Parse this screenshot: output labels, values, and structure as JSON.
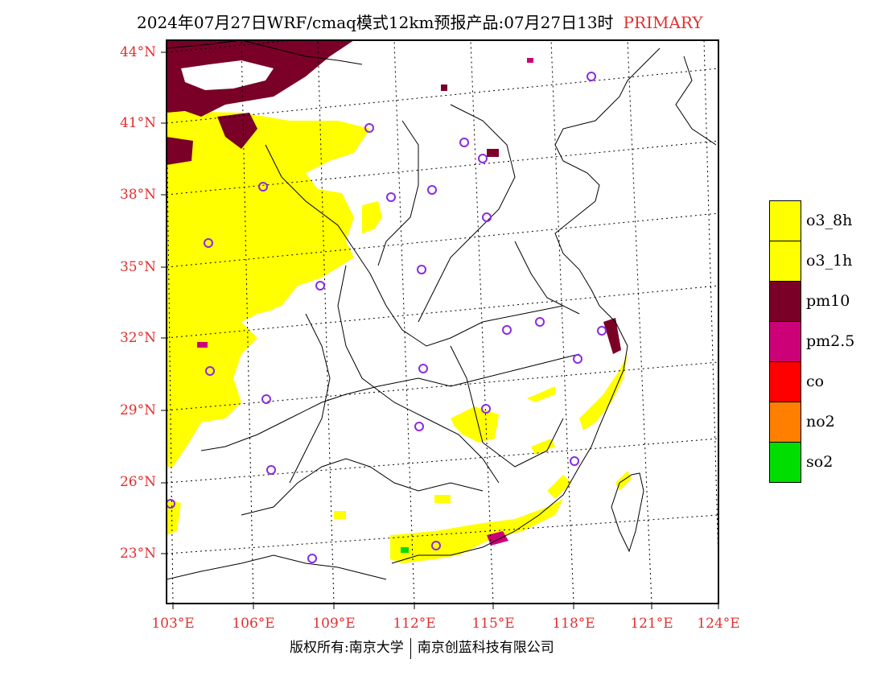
{
  "title": {
    "main": "2024年07月27日WRF/cmaq模式12km预报产品:07月27日13时",
    "tag": "PRIMARY"
  },
  "axes": {
    "lat_labels": [
      "44°N",
      "41°N",
      "38°N",
      "35°N",
      "32°N",
      "29°N",
      "26°N",
      "23°N"
    ],
    "lon_labels": [
      "103°E",
      "106°E",
      "109°E",
      "112°E",
      "115°E",
      "118°E",
      "121°E",
      "124°E"
    ]
  },
  "legend": [
    {
      "label": "o3_8h",
      "color": "#ffff00"
    },
    {
      "label": "o3_1h",
      "color": "#ffff00"
    },
    {
      "label": "pm10",
      "color": "#7a0028"
    },
    {
      "label": "pm2.5",
      "color": "#cc0077"
    },
    {
      "label": "co",
      "color": "#ff0000"
    },
    {
      "label": "no2",
      "color": "#ff7f00"
    },
    {
      "label": "so2",
      "color": "#00dd00"
    }
  ],
  "colors": {
    "axis_label": "#e03030",
    "station_marker": "#8a2be2"
  },
  "copyright": {
    "left": "版权所有:南京大学",
    "right": "南京创蓝科技有限公司"
  }
}
